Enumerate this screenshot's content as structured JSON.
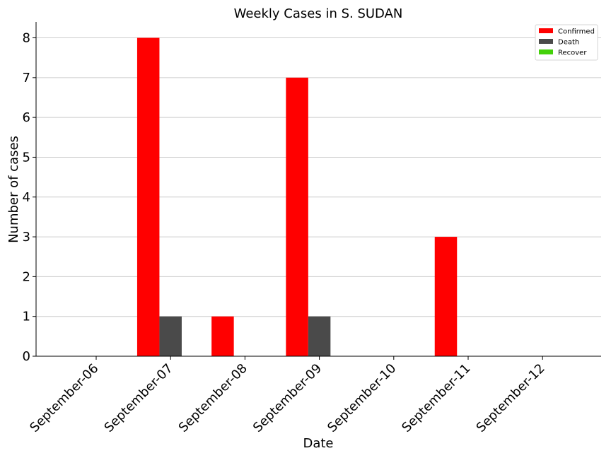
{
  "chart_data": {
    "type": "bar",
    "title": "Weekly Cases in S. SUDAN",
    "xlabel": "Date",
    "ylabel": "Number of cases",
    "categories": [
      "September-06",
      "September-07",
      "September-08",
      "September-09",
      "September-10",
      "September-11",
      "September-12"
    ],
    "series": [
      {
        "name": "Confirmed",
        "color": "#ff0000",
        "values": [
          0,
          8,
          1,
          7,
          0,
          3,
          0
        ]
      },
      {
        "name": "Death",
        "color": "#4a4a4a",
        "values": [
          0,
          1,
          0,
          1,
          0,
          0,
          0
        ]
      },
      {
        "name": "Recover",
        "color": "#44d10a",
        "values": [
          0,
          0,
          0,
          0,
          0,
          0,
          0
        ]
      }
    ],
    "ylim": [
      0,
      8.4
    ],
    "yticks": [
      0,
      1,
      2,
      3,
      4,
      5,
      6,
      7,
      8
    ],
    "grid": "horizontal",
    "legend_position": "top-right"
  }
}
